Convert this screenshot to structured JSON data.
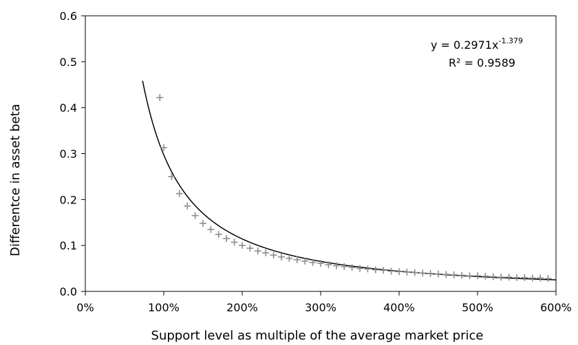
{
  "chart_data": {
    "type": "scatter",
    "title": "",
    "xlabel": "Support level as multiple of the average market price",
    "ylabel": "Differentce in asset beta",
    "xlim": [
      0,
      6
    ],
    "ylim": [
      0,
      0.6
    ],
    "x_ticks": [
      "0%",
      "100%",
      "200%",
      "300%",
      "400%",
      "500%",
      "600%"
    ],
    "y_ticks": [
      "0.0",
      "0.1",
      "0.2",
      "0.3",
      "0.4",
      "0.5",
      "0.6"
    ],
    "grid": false,
    "legend": "none",
    "marker": "plus",
    "marker_color": "#8c8c8c",
    "trendline": {
      "type": "power",
      "coefficient": 0.2971,
      "exponent": -1.379,
      "x_range": [
        0.73,
        6.0
      ],
      "color": "#000000"
    },
    "equation_text": {
      "y_prefix": "y = 0.2971x",
      "exponent": "-1.379",
      "r2_text": "R² = 0.9589"
    },
    "series": [
      {
        "x": [
          0.95,
          1.0,
          1.1,
          1.2,
          1.3,
          1.4,
          1.5,
          1.6,
          1.7,
          1.8,
          1.9,
          2.0,
          2.1,
          2.2,
          2.3,
          2.4,
          2.5,
          2.6,
          2.7,
          2.8,
          2.9,
          3.0,
          3.1,
          3.2,
          3.3,
          3.4,
          3.5,
          3.6,
          3.7,
          3.8,
          3.9,
          4.0,
          4.1,
          4.2,
          4.3,
          4.4,
          4.5,
          4.6,
          4.7,
          4.8,
          4.9,
          5.0,
          5.1,
          5.2,
          5.3,
          5.4,
          5.5,
          5.6,
          5.7,
          5.8,
          5.9
        ],
        "y": [
          0.422,
          0.313,
          0.25,
          0.213,
          0.186,
          0.165,
          0.148,
          0.135,
          0.124,
          0.115,
          0.107,
          0.1,
          0.094,
          0.088,
          0.084,
          0.079,
          0.075,
          0.072,
          0.069,
          0.066,
          0.063,
          0.061,
          0.058,
          0.056,
          0.054,
          0.052,
          0.05,
          0.049,
          0.047,
          0.046,
          0.044,
          0.043,
          0.042,
          0.041,
          0.04,
          0.039,
          0.038,
          0.037,
          0.036,
          0.035,
          0.034,
          0.034,
          0.033,
          0.032,
          0.031,
          0.031,
          0.03,
          0.03,
          0.029,
          0.029,
          0.028
        ]
      }
    ]
  }
}
